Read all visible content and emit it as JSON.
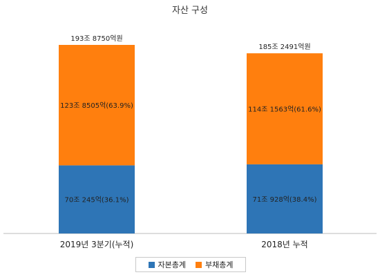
{
  "chart_data": {
    "type": "bar",
    "stacked": true,
    "title": "자산 구성",
    "xlabel": "",
    "ylabel": "",
    "categories": [
      "2019년 3분기(누적)",
      "2018년 누적"
    ],
    "totals": [
      1938750,
      1852491
    ],
    "total_labels": [
      "193조 8750억원",
      "185조 2491억원"
    ],
    "series": [
      {
        "name": "자본총계",
        "color": "#2e75b6",
        "values": [
          700245,
          710928
        ],
        "labels": [
          "70조 245억(36.1%)",
          "71조 928억(38.4%)"
        ]
      },
      {
        "name": "부채총계",
        "color": "#ff7f0e",
        "values": [
          1238505,
          1141563
        ],
        "labels": [
          "123조 8505억(63.9%)",
          "114조 1563억(61.6%)"
        ]
      }
    ],
    "unit": "억원",
    "legend_position": "bottom",
    "grid": false
  }
}
